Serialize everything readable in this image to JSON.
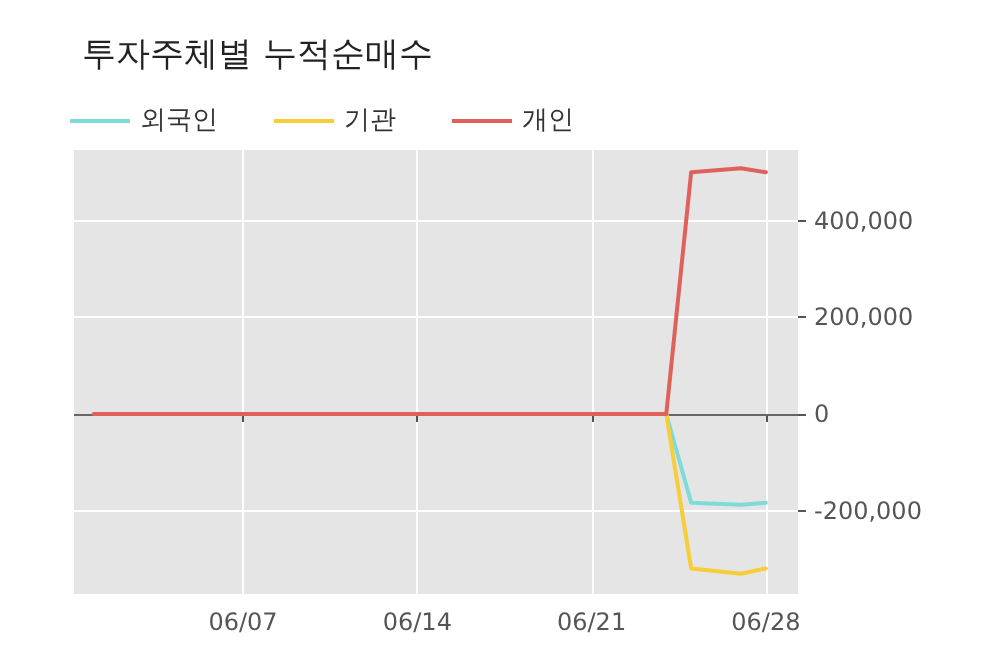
{
  "chart_data": {
    "type": "line",
    "title": "투자주체별 누적순매수",
    "x": [
      "--06-01",
      "--06-02",
      "--06-03",
      "--06-04",
      "--06-07",
      "--06-08",
      "--06-09",
      "--06-10",
      "--06-11",
      "--06-14",
      "--06-15",
      "--06-16",
      "--06-17",
      "--06-18",
      "--06-21",
      "--06-22",
      "--06-23",
      "--06-24",
      "--06-25",
      "--06-27",
      "--06-28"
    ],
    "series": [
      {
        "name": "외국인",
        "color": "#7fdbd8",
        "values": [
          null,
          null,
          null,
          null,
          null,
          null,
          null,
          null,
          null,
          null,
          null,
          null,
          null,
          null,
          null,
          null,
          null,
          0,
          -184000,
          -188000,
          -184000
        ]
      },
      {
        "name": "기관",
        "color": "#f7cd3a",
        "values": [
          null,
          null,
          null,
          null,
          null,
          null,
          null,
          null,
          null,
          null,
          null,
          null,
          null,
          null,
          null,
          null,
          null,
          0,
          -320000,
          -331000,
          -320000
        ]
      },
      {
        "name": "개인",
        "color": "#e0605a",
        "values": [
          0,
          0,
          0,
          0,
          0,
          0,
          0,
          0,
          0,
          0,
          0,
          0,
          0,
          0,
          0,
          0,
          0,
          0,
          501000,
          509000,
          501000
        ]
      }
    ],
    "xlim": [
      "--05-31T05:00",
      "--06-29T07:00"
    ],
    "xticks": [
      {
        "value": "--06-07",
        "label": "06/07"
      },
      {
        "value": "--06-14",
        "label": "06/14"
      },
      {
        "value": "--06-21",
        "label": "06/21"
      },
      {
        "value": "--06-28",
        "label": "06/28"
      }
    ],
    "ylim": [
      -373000,
      547000
    ],
    "yticks": [
      {
        "value": -200000,
        "label": "-200,000"
      },
      {
        "value": 0,
        "label": "0"
      },
      {
        "value": 200000,
        "label": "200,000"
      },
      {
        "value": 400000,
        "label": "400,000"
      }
    ],
    "ref_lines": [
      {
        "axis": "y",
        "value": 0,
        "color": "#666666"
      }
    ],
    "grid": true,
    "legend": "top left",
    "marker": "none",
    "line_style": "solid"
  }
}
